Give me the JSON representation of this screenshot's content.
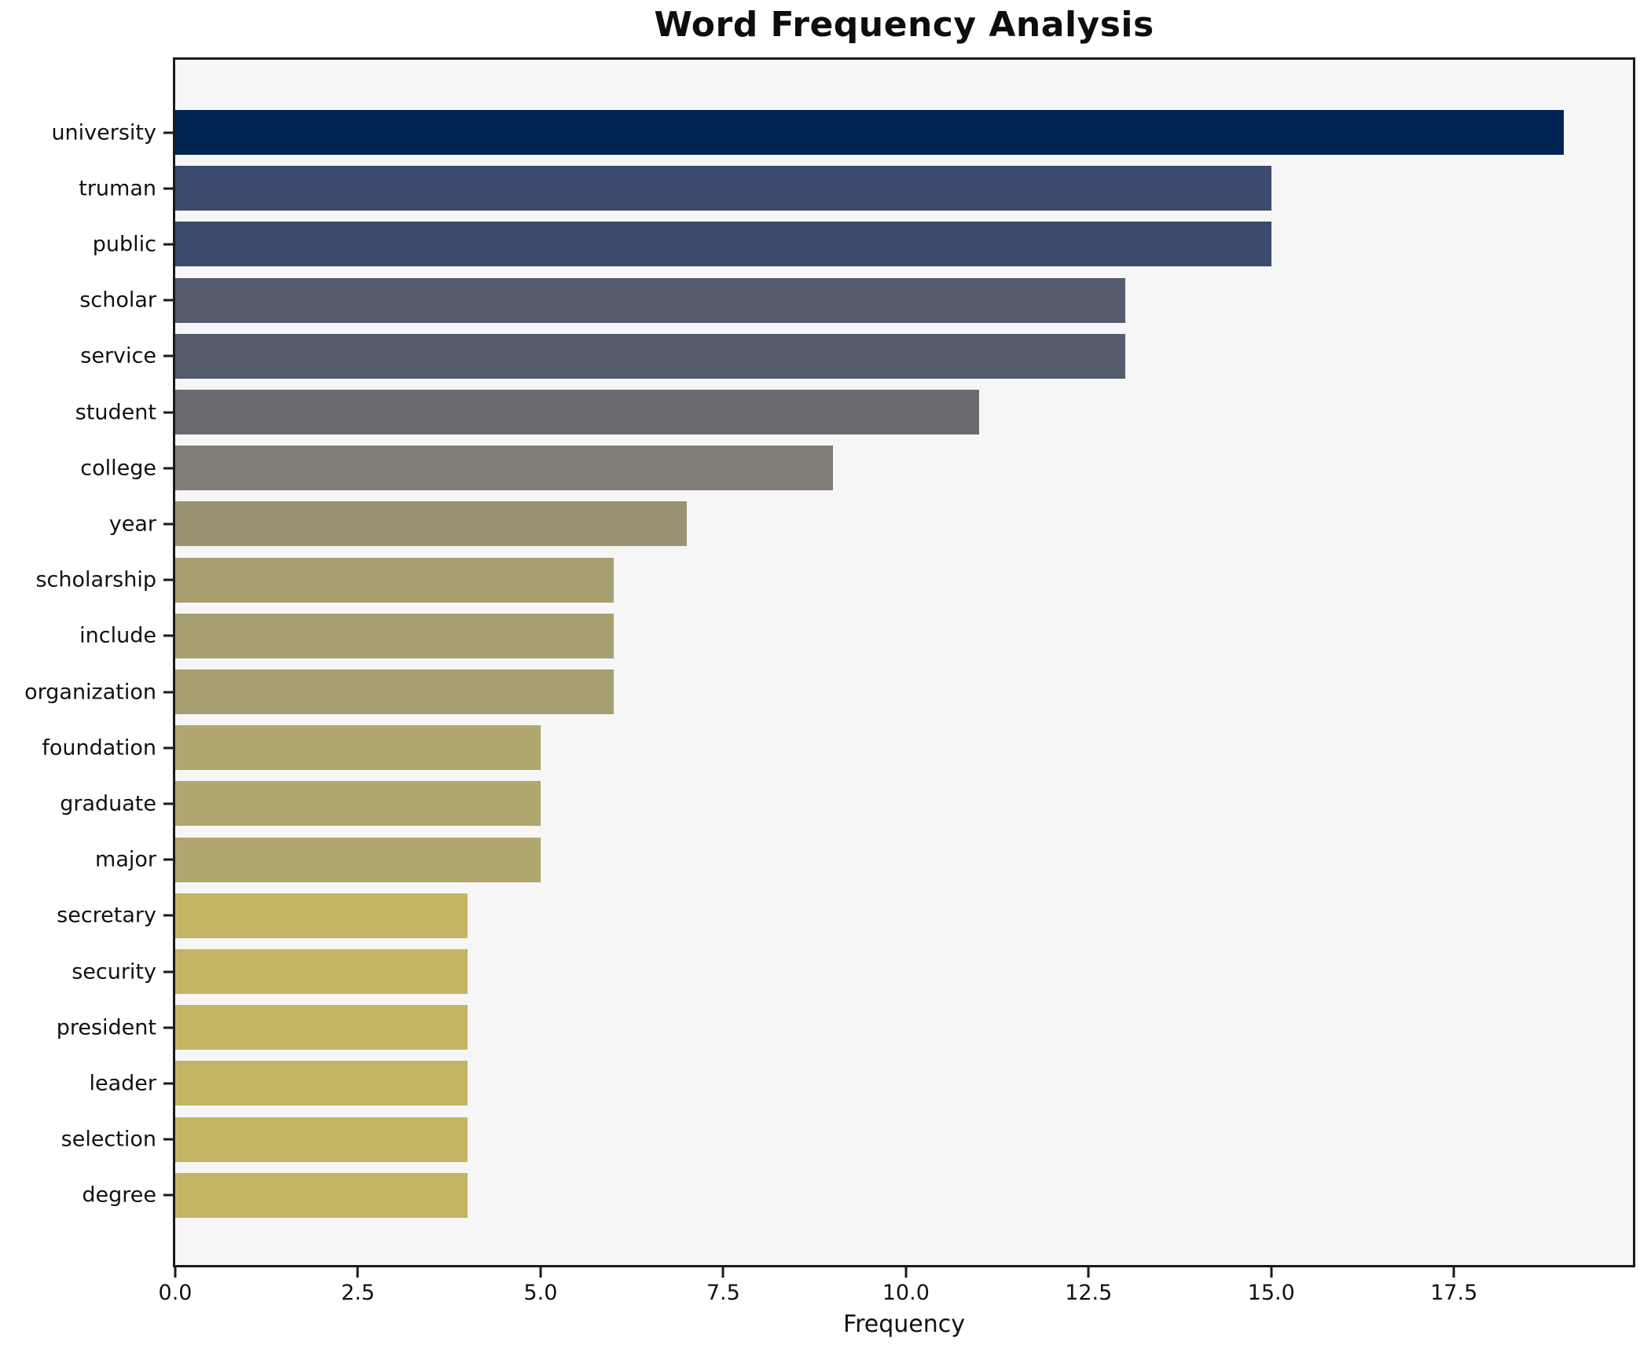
{
  "title": "Word Frequency Analysis",
  "x_axis_label": "Frequency",
  "chart_data": {
    "type": "bar",
    "orientation": "horizontal",
    "title": "Word Frequency Analysis",
    "xlabel": "Frequency",
    "ylabel": "",
    "categories": [
      "university",
      "truman",
      "public",
      "scholar",
      "service",
      "student",
      "college",
      "year",
      "scholarship",
      "include",
      "organization",
      "foundation",
      "graduate",
      "major",
      "secretary",
      "security",
      "president",
      "leader",
      "selection",
      "degree"
    ],
    "values": [
      19,
      15,
      15,
      13,
      13,
      11,
      9,
      7,
      6,
      6,
      6,
      5,
      5,
      5,
      4,
      4,
      4,
      4,
      4,
      4
    ],
    "bar_colors": [
      "#002452",
      "#3b4a6d",
      "#3b4a6d",
      "#555c6d",
      "#555c6d",
      "#6a6b70",
      "#807d77",
      "#9a9272",
      "#a79f71",
      "#a79f71",
      "#a79f71",
      "#b0a76e",
      "#b0a76e",
      "#b0a76e",
      "#c3b565",
      "#c3b565",
      "#c3b565",
      "#c3b565",
      "#c3b565",
      "#c3b565"
    ],
    "xlim": [
      0,
      19.95
    ],
    "x_ticks": [
      0.0,
      2.5,
      5.0,
      7.5,
      10.0,
      12.5,
      15.0,
      17.5
    ],
    "x_tick_labels": [
      "0.0",
      "2.5",
      "5.0",
      "7.5",
      "10.0",
      "12.5",
      "15.0",
      "17.5"
    ],
    "grid": false,
    "legend": null,
    "colors": {
      "plot_background": "#f6f6f7",
      "figure_background": "#ffffff",
      "spine": "#1a1a1a",
      "text": "#111111"
    }
  }
}
